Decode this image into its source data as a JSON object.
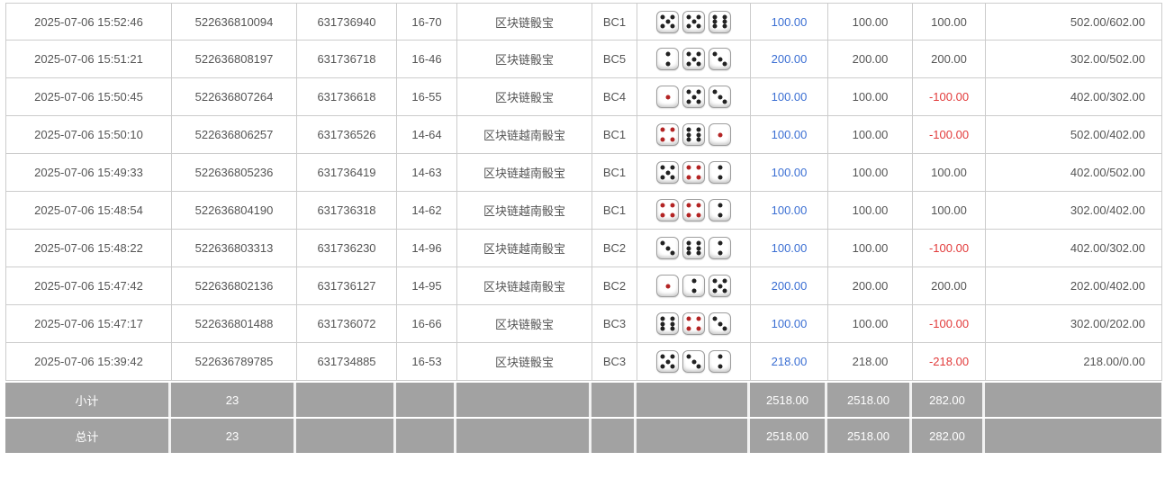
{
  "colors": {
    "bet_link_blue": "#3b6fd3",
    "negative_red": "#e23b3b",
    "footer_gray": "#a2a2a2",
    "border_gray": "#cccccc",
    "dice_pip_black": "#222222",
    "dice_pip_red": "#b32424"
  },
  "table": {
    "rows": [
      {
        "time": "2025-07-06 15:52:46",
        "order_no": "522636810094",
        "round_no": "631736940",
        "issue": "16-70",
        "game": "区块链骰宝",
        "table_code": "BC1",
        "dice": [
          5,
          5,
          6
        ],
        "bet": "100.00",
        "valid": "100.00",
        "winloss": "100.00",
        "balance": "502.00/602.00"
      },
      {
        "time": "2025-07-06 15:51:21",
        "order_no": "522636808197",
        "round_no": "631736718",
        "issue": "16-46",
        "game": "区块链骰宝",
        "table_code": "BC5",
        "dice": [
          2,
          5,
          3
        ],
        "bet": "200.00",
        "valid": "200.00",
        "winloss": "200.00",
        "balance": "302.00/502.00"
      },
      {
        "time": "2025-07-06 15:50:45",
        "order_no": "522636807264",
        "round_no": "631736618",
        "issue": "16-55",
        "game": "区块链骰宝",
        "table_code": "BC4",
        "dice": [
          1,
          5,
          3
        ],
        "bet": "100.00",
        "valid": "100.00",
        "winloss": "-100.00",
        "balance": "402.00/302.00"
      },
      {
        "time": "2025-07-06 15:50:10",
        "order_no": "522636806257",
        "round_no": "631736526",
        "issue": "14-64",
        "game": "区块链越南骰宝",
        "table_code": "BC1",
        "dice": [
          4,
          6,
          1
        ],
        "bet": "100.00",
        "valid": "100.00",
        "winloss": "-100.00",
        "balance": "502.00/402.00"
      },
      {
        "time": "2025-07-06 15:49:33",
        "order_no": "522636805236",
        "round_no": "631736419",
        "issue": "14-63",
        "game": "区块链越南骰宝",
        "table_code": "BC1",
        "dice": [
          5,
          4,
          2
        ],
        "bet": "100.00",
        "valid": "100.00",
        "winloss": "100.00",
        "balance": "402.00/502.00"
      },
      {
        "time": "2025-07-06 15:48:54",
        "order_no": "522636804190",
        "round_no": "631736318",
        "issue": "14-62",
        "game": "区块链越南骰宝",
        "table_code": "BC1",
        "dice": [
          4,
          4,
          2
        ],
        "bet": "100.00",
        "valid": "100.00",
        "winloss": "100.00",
        "balance": "302.00/402.00"
      },
      {
        "time": "2025-07-06 15:48:22",
        "order_no": "522636803313",
        "round_no": "631736230",
        "issue": "14-96",
        "game": "区块链越南骰宝",
        "table_code": "BC2",
        "dice": [
          3,
          6,
          2
        ],
        "bet": "100.00",
        "valid": "100.00",
        "winloss": "-100.00",
        "balance": "402.00/302.00"
      },
      {
        "time": "2025-07-06 15:47:42",
        "order_no": "522636802136",
        "round_no": "631736127",
        "issue": "14-95",
        "game": "区块链越南骰宝",
        "table_code": "BC2",
        "dice": [
          1,
          2,
          5
        ],
        "bet": "200.00",
        "valid": "200.00",
        "winloss": "200.00",
        "balance": "202.00/402.00"
      },
      {
        "time": "2025-07-06 15:47:17",
        "order_no": "522636801488",
        "round_no": "631736072",
        "issue": "16-66",
        "game": "区块链骰宝",
        "table_code": "BC3",
        "dice": [
          6,
          4,
          3
        ],
        "bet": "100.00",
        "valid": "100.00",
        "winloss": "-100.00",
        "balance": "302.00/202.00"
      },
      {
        "time": "2025-07-06 15:39:42",
        "order_no": "522636789785",
        "round_no": "631734885",
        "issue": "16-53",
        "game": "区块链骰宝",
        "table_code": "BC3",
        "dice": [
          5,
          3,
          2
        ],
        "bet": "218.00",
        "valid": "218.00",
        "winloss": "-218.00",
        "balance": "218.00/0.00"
      }
    ],
    "footer": [
      {
        "label": "小计",
        "count": "23",
        "bet": "2518.00",
        "valid": "2518.00",
        "winloss": "282.00"
      },
      {
        "label": "总计",
        "count": "23",
        "bet": "2518.00",
        "valid": "2518.00",
        "winloss": "282.00"
      }
    ]
  }
}
